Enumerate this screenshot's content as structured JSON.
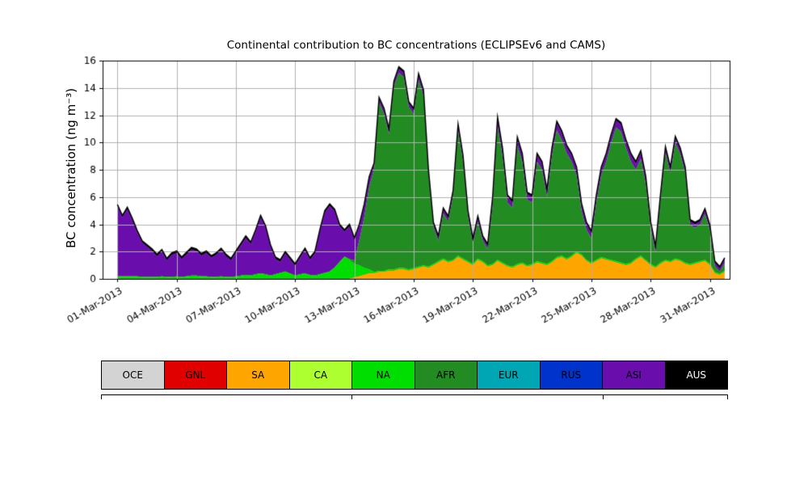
{
  "title": "Continental contribution to BC concentrations (ECLIPSEv6 and CAMS)",
  "ylabel": "BC concentration (ng m⁻³)",
  "chart_data": {
    "type": "area",
    "stacked": true,
    "title": "Continental contribution to BC concentrations (ECLIPSEv6 and CAMS)",
    "xlabel": "",
    "ylabel": "BC concentration (ng m⁻³)",
    "x_start": "01-Mar-2013",
    "x_step_hours": 6,
    "ylim": [
      0,
      16
    ],
    "yticks": [
      0,
      2,
      4,
      6,
      8,
      10,
      12,
      14,
      16
    ],
    "xtick_days": [
      0,
      3,
      6,
      9,
      12,
      15,
      18,
      21,
      24,
      27,
      30
    ],
    "xtick_labels": [
      "01-Mar-2013",
      "04-Mar-2013",
      "07-Mar-2013",
      "10-Mar-2013",
      "13-Mar-2013",
      "16-Mar-2013",
      "19-Mar-2013",
      "22-Mar-2013",
      "25-Mar-2013",
      "28-Mar-2013",
      "31-Mar-2013"
    ],
    "grid": true,
    "grid_color": "#b0b0b0",
    "outline_color": "#000000",
    "legend_position": "below",
    "series": [
      {
        "name": "OCE",
        "color": "#d3d3d3",
        "values": 0
      },
      {
        "name": "GNL",
        "color": "#e00000",
        "values": 0
      },
      {
        "name": "SA",
        "color": "#ffa500",
        "values": [
          0,
          0,
          0,
          0,
          0,
          0,
          0,
          0,
          0,
          0,
          0,
          0,
          0,
          0,
          0,
          0,
          0,
          0,
          0,
          0,
          0,
          0,
          0,
          0,
          0,
          0,
          0,
          0,
          0,
          0,
          0,
          0,
          0,
          0,
          0,
          0,
          0,
          0,
          0,
          0,
          0,
          0,
          0,
          0,
          0,
          0,
          0,
          0,
          0.1,
          0.2,
          0.3,
          0.4,
          0.4,
          0.5,
          0.5,
          0.6,
          0.6,
          0.7,
          0.7,
          0.6,
          0.7,
          0.8,
          0.9,
          0.8,
          1.0,
          1.2,
          1.4,
          1.2,
          1.3,
          1.6,
          1.4,
          1.2,
          1.0,
          1.4,
          1.2,
          0.9,
          1.0,
          1.3,
          1.1,
          0.9,
          0.8,
          1.0,
          1.1,
          0.9,
          1.0,
          1.2,
          1.1,
          1.0,
          1.2,
          1.5,
          1.6,
          1.4,
          1.6,
          1.9,
          1.7,
          1.3,
          1.1,
          1.3,
          1.5,
          1.4,
          1.3,
          1.2,
          1.1,
          1.0,
          1.1,
          1.4,
          1.6,
          1.3,
          1.0,
          0.8,
          1.1,
          1.3,
          1.2,
          1.4,
          1.3,
          1.1,
          1.0,
          1.1,
          1.2,
          1.3,
          1.0,
          0.4,
          0.3,
          0.5
        ]
      },
      {
        "name": "CA",
        "color": "#adff2f",
        "values": 0
      },
      {
        "name": "NA",
        "color": "#00dd00",
        "values": [
          0.15,
          0.15,
          0.15,
          0.15,
          0.15,
          0.1,
          0.1,
          0.1,
          0.1,
          0.15,
          0.1,
          0.1,
          0.15,
          0.1,
          0.15,
          0.2,
          0.2,
          0.15,
          0.15,
          0.1,
          0.1,
          0.15,
          0.1,
          0.1,
          0.15,
          0.2,
          0.25,
          0.2,
          0.3,
          0.35,
          0.3,
          0.2,
          0.3,
          0.4,
          0.5,
          0.35,
          0.2,
          0.3,
          0.35,
          0.25,
          0.2,
          0.3,
          0.4,
          0.5,
          0.8,
          1.2,
          1.6,
          1.4,
          1.0,
          0.8,
          0.5,
          0.3,
          0.1,
          0.1,
          0.1,
          0.1,
          0.1,
          0.1,
          0.1,
          0.1,
          0.1,
          0.1,
          0.1,
          0.1,
          0.1,
          0.1,
          0.1,
          0.1,
          0.1,
          0.1,
          0.1,
          0.1,
          0.1,
          0.1,
          0.1,
          0.1,
          0.1,
          0.1,
          0.1,
          0.1,
          0.1,
          0.1,
          0.1,
          0.1,
          0.1,
          0.1,
          0.1,
          0.1,
          0.1,
          0.1,
          0.1,
          0.1,
          0.1,
          0.1,
          0.1,
          0.1,
          0.1,
          0.1,
          0.1,
          0.1,
          0.1,
          0.1,
          0.1,
          0.1,
          0.1,
          0.1,
          0.1,
          0.1,
          0.1,
          0.1,
          0.1,
          0.1,
          0.1,
          0.1,
          0.1,
          0.1,
          0.1,
          0.1,
          0.1,
          0.1,
          0.1,
          0.1,
          0.1,
          0.1
        ]
      },
      {
        "name": "AFR",
        "color": "#228b22",
        "values": [
          0.05,
          0.05,
          0.05,
          0.05,
          0.05,
          0.05,
          0.05,
          0.05,
          0.05,
          0.05,
          0.05,
          0.05,
          0.05,
          0.05,
          0.05,
          0.05,
          0.05,
          0.05,
          0.05,
          0.05,
          0.05,
          0.05,
          0.05,
          0.05,
          0.05,
          0.05,
          0.05,
          0.05,
          0.05,
          0.05,
          0.05,
          0.05,
          0.05,
          0.05,
          0.05,
          0.05,
          0.05,
          0.05,
          0.05,
          0.05,
          0.05,
          0.05,
          0.05,
          0.05,
          0.05,
          0.05,
          0.05,
          0.05,
          0.25,
          1.85,
          3.75,
          6.05,
          7.6,
          12.3,
          11.5,
          9.9,
          13.4,
          14.3,
          14.0,
          11.9,
          11.3,
          13.7,
          12.4,
          6.7,
          2.7,
          1.5,
          3.3,
          2.9,
          4.7,
          9.2,
          7.1,
          3.3,
          1.5,
          2.7,
          1.5,
          1.2,
          4.3,
          9.8,
          7.8,
          4.6,
          4.3,
          8.7,
          7.4,
          4.8,
          4.5,
          7.3,
          6.8,
          4.9,
          7.7,
          9.3,
          8.5,
          7.7,
          6.9,
          5.6,
          3.2,
          2.2,
          1.8,
          4.2,
          6.0,
          7.1,
          8.6,
          9.8,
          9.6,
          8.5,
          7.4,
          6.5,
          7.1,
          5.6,
          2.65,
          1.05,
          4.55,
          7.85,
          6.45,
          8.45,
          7.75,
          6.55,
          2.85,
          2.55,
          2.65,
          3.35,
          2.45,
          0.45,
          0.15,
          0.55
        ]
      },
      {
        "name": "EUR",
        "color": "#00a6b4",
        "values": 0
      },
      {
        "name": "RUS",
        "color": "#0033cc",
        "values": 0
      },
      {
        "name": "ASI",
        "color": "#6a0dad",
        "values": [
          5.1,
          4.3,
          4.9,
          4.1,
          3.2,
          2.5,
          2.2,
          1.9,
          1.5,
          1.8,
          1.2,
          1.6,
          1.7,
          1.3,
          1.6,
          1.9,
          1.8,
          1.5,
          1.7,
          1.4,
          1.6,
          1.9,
          1.5,
          1.2,
          1.7,
          2.2,
          2.7,
          2.3,
          3.1,
          4.1,
          3.4,
          2.1,
          1.1,
          0.8,
          1.3,
          1.0,
          0.7,
          1.2,
          1.7,
          1.1,
          1.6,
          3.1,
          4.4,
          4.8,
          4.1,
          2.6,
          1.8,
          2.4,
          1.5,
          1.0,
          0.8,
          0.6,
          0.25,
          0.25,
          0.25,
          0.25,
          0.25,
          0.3,
          0.3,
          0.25,
          0.25,
          0.3,
          0.3,
          0.25,
          0.2,
          0.2,
          0.25,
          0.25,
          0.25,
          0.3,
          0.3,
          0.25,
          0.2,
          0.25,
          0.2,
          0.2,
          0.45,
          0.5,
          0.45,
          0.4,
          0.4,
          0.45,
          0.45,
          0.4,
          0.4,
          0.45,
          0.45,
          0.4,
          0.45,
          0.5,
          0.5,
          0.45,
          0.45,
          0.45,
          0.4,
          0.4,
          0.35,
          0.4,
          0.45,
          0.45,
          0.45,
          0.5,
          0.5,
          0.45,
          0.45,
          0.45,
          0.45,
          0.4,
          0.3,
          0.3,
          0.3,
          0.3,
          0.3,
          0.35,
          0.3,
          0.3,
          0.25,
          0.25,
          0.25,
          0.25,
          0.25,
          0.2,
          0.2,
          0.25
        ]
      },
      {
        "name": "AUS",
        "color": "#000000",
        "label_color": "#ffffff",
        "values": 0.15
      }
    ]
  }
}
